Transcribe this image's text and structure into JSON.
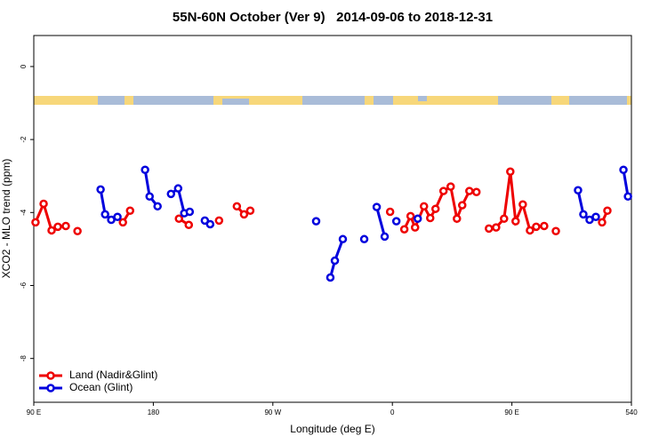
{
  "chart_data": {
    "type": "line",
    "title": "55N-60N October (Ver 9)   2014-09-06 to 2018-12-31",
    "xlabel": "Longitude (deg E)",
    "ylabel": "XCO2 - MLO trend (ppm)",
    "xlim": [
      90,
      540
    ],
    "ylim": [
      -9.2,
      0.85
    ],
    "xticks": [
      {
        "value": 90,
        "label": "90 E"
      },
      180,
      {
        "value": 270,
        "label": "90 W"
      },
      {
        "value": 360,
        "label": "0"
      },
      {
        "value": 450,
        "label": "90 E"
      },
      540
    ],
    "yticks": [
      0,
      -2,
      -4,
      -6,
      -8
    ],
    "legend": "bottom-left",
    "series": [
      {
        "name": "Land (Nadir&Glint)",
        "color": "#ee0000",
        "x": [
          91.3,
          97.4,
          103.4,
          108.1,
          114.1,
          null,
          122.9,
          null,
          157.1,
          162.5,
          null,
          199.3,
          206.7,
          null,
          229.5,
          null,
          242.9,
          248.3,
          253.0,
          null,
          358.3,
          null,
          369.0,
          373.7,
          377.1,
          383.8,
          388.5,
          392.5,
          398.5,
          403.9,
          408.6,
          412.6,
          418.0,
          423.3,
          null,
          432.7,
          438.1,
          444.1,
          448.8,
          452.8,
          458.2,
          463.6,
          468.3,
          474.3,
          null,
          483.1,
          null,
          517.9,
          521.9
        ],
        "values": [
          -4.27,
          -3.76,
          -4.49,
          -4.39,
          -4.37,
          null,
          -4.51,
          null,
          -4.27,
          -3.95,
          null,
          -4.17,
          -4.34,
          null,
          -4.22,
          null,
          -3.83,
          -4.05,
          -3.95,
          null,
          -3.98,
          null,
          -4.46,
          -4.1,
          -4.41,
          -3.83,
          -4.15,
          -3.9,
          -3.41,
          -3.29,
          -4.17,
          -3.8,
          -3.41,
          -3.44,
          null,
          -4.44,
          -4.41,
          -4.17,
          -2.88,
          -4.24,
          -3.78,
          -4.49,
          -4.39,
          -4.37,
          null,
          -4.51,
          null,
          -4.27,
          -3.95
        ]
      },
      {
        "name": "Ocean (Glint)",
        "color": "#0000dd",
        "x": [
          140.3,
          143.7,
          148.3,
          153.0,
          null,
          173.8,
          177.2,
          183.2,
          null,
          193.3,
          198.7,
          203.3,
          207.4,
          null,
          218.8,
          222.8,
          null,
          302.6,
          null,
          313.3,
          316.7,
          322.7,
          null,
          338.8,
          null,
          348.2,
          354.2,
          null,
          363.0,
          null,
          379.1,
          null,
          499.8,
          503.8,
          508.5,
          513.2,
          null,
          534.0,
          537.4
        ],
        "values": [
          -3.37,
          -4.05,
          -4.2,
          -4.12,
          null,
          -2.83,
          -3.56,
          -3.83,
          null,
          -3.49,
          -3.34,
          -4.02,
          -3.98,
          null,
          -4.22,
          -4.32,
          null,
          -4.24,
          null,
          -5.78,
          -5.32,
          -4.73,
          null,
          -4.73,
          null,
          -3.85,
          -4.66,
          null,
          -4.24,
          null,
          -4.17,
          null,
          -3.39,
          -4.05,
          -4.2,
          -4.12,
          null,
          -2.83,
          -3.56
        ]
      }
    ]
  }
}
